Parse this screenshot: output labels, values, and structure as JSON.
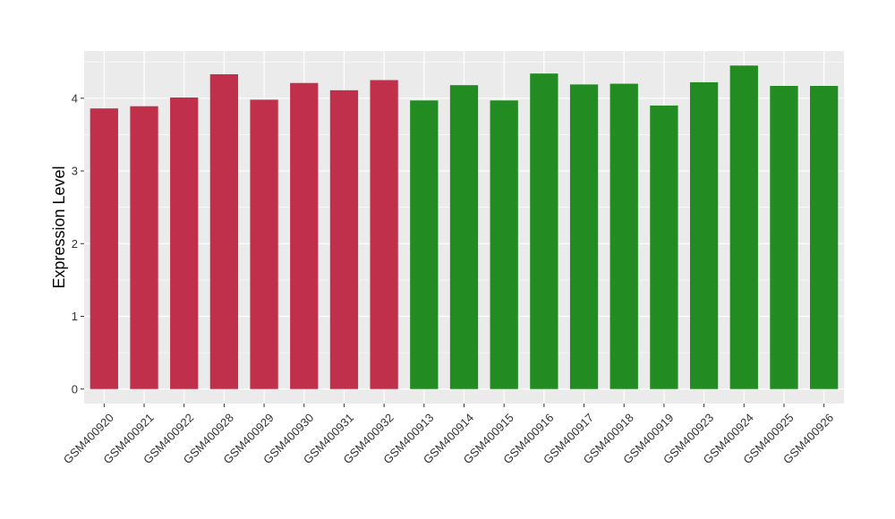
{
  "chart_data": {
    "type": "bar",
    "xlabel": "",
    "ylabel": "Expression Level",
    "ylim": [
      -0.2,
      4.65
    ],
    "yticks": [
      0,
      1,
      2,
      3,
      4
    ],
    "grid": true,
    "legend": "none",
    "categories": [
      "GSM400920",
      "GSM400921",
      "GSM400922",
      "GSM400928",
      "GSM400929",
      "GSM400930",
      "GSM400931",
      "GSM400932",
      "GSM400913",
      "GSM400914",
      "GSM400915",
      "GSM400916",
      "GSM400917",
      "GSM400918",
      "GSM400919",
      "GSM400923",
      "GSM400924",
      "GSM400925",
      "GSM400926"
    ],
    "values": [
      3.86,
      3.89,
      4.01,
      4.33,
      3.98,
      4.21,
      4.11,
      4.25,
      3.97,
      4.18,
      3.97,
      4.34,
      4.19,
      4.2,
      3.9,
      4.22,
      4.45,
      4.17,
      4.17
    ],
    "bar_colors": [
      "#c0304a",
      "#c0304a",
      "#c0304a",
      "#c0304a",
      "#c0304a",
      "#c0304a",
      "#c0304a",
      "#c0304a",
      "#228b22",
      "#228b22",
      "#228b22",
      "#228b22",
      "#228b22",
      "#228b22",
      "#228b22",
      "#228b22",
      "#228b22",
      "#228b22",
      "#228b22"
    ],
    "panel_background": "#ebebeb",
    "gridline_color": "#ffffff"
  }
}
